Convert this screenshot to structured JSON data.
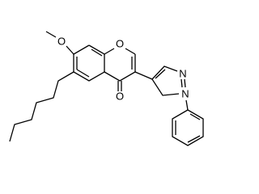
{
  "atom_labels": [
    "O",
    "O",
    "O",
    "N",
    "N"
  ]
}
